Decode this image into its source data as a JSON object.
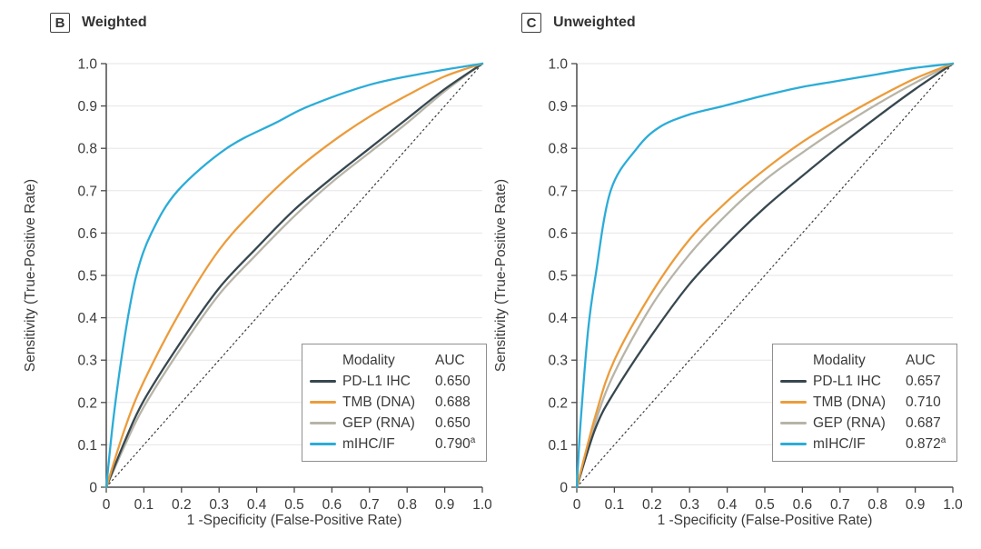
{
  "figure": {
    "background": "#ffffff",
    "text_color": "#3A3A3A",
    "axis_color": "#4A4A4A",
    "grid_color": "#E6E6E6",
    "diagonal_color": "#3A3A3A",
    "legend_border_color": "#8F8F8F"
  },
  "panels": [
    {
      "panel_letter": "B",
      "title": "Weighted",
      "xlabel": "1 -Specificity (False-Positive Rate)",
      "ylabel": "Sensitivity (True-Positive Rate)",
      "legend": {
        "header_modality": "Modality",
        "header_auc": "AUC",
        "rows": [
          {
            "label": "PD-L1 IHC",
            "auc": "0.650",
            "sup": ""
          },
          {
            "label": "TMB (DNA)",
            "auc": "0.688",
            "sup": ""
          },
          {
            "label": "GEP (RNA)",
            "auc": "0.650",
            "sup": ""
          },
          {
            "label": "mIHC/IF",
            "auc": "0.790",
            "sup": "a"
          }
        ]
      }
    },
    {
      "panel_letter": "C",
      "title": "Unweighted",
      "xlabel": "1 -Specificity (False-Positive Rate)",
      "ylabel": "Sensitivity (True-Positive Rate)",
      "legend": {
        "header_modality": "Modality",
        "header_auc": "AUC",
        "rows": [
          {
            "label": "PD-L1 IHC",
            "auc": "0.657",
            "sup": ""
          },
          {
            "label": "TMB (DNA)",
            "auc": "0.710",
            "sup": ""
          },
          {
            "label": "GEP (RNA)",
            "auc": "0.687",
            "sup": ""
          },
          {
            "label": "mIHC/IF",
            "auc": "0.872",
            "sup": "a"
          }
        ]
      }
    }
  ],
  "chart_data": [
    {
      "type": "line",
      "subtype": "roc-curve",
      "panel": "B",
      "title": "Weighted",
      "xlabel": "1 -Specificity (False-Positive Rate)",
      "ylabel": "Sensitivity (True-Positive Rate)",
      "xlim": [
        0,
        1
      ],
      "ylim": [
        0,
        1
      ],
      "x_ticks": [
        "0",
        "0.1",
        "0.2",
        "0.3",
        "0.4",
        "0.5",
        "0.6",
        "0.7",
        "0.8",
        "0.9",
        "1.0"
      ],
      "y_ticks": [
        "0",
        "0.1",
        "0.2",
        "0.3",
        "0.4",
        "0.5",
        "0.6",
        "0.7",
        "0.8",
        "0.9",
        "1.0"
      ],
      "grid": "horizontal",
      "legend_position": "lower-right",
      "reference_line": {
        "style": "dotted",
        "from": [
          0,
          0
        ],
        "to": [
          1,
          1
        ]
      },
      "series": [
        {
          "name": "PD-L1 IHC",
          "auc": 0.65,
          "color": "#37474F",
          "points": [
            [
              0,
              0
            ],
            [
              0.05,
              0.11
            ],
            [
              0.1,
              0.205
            ],
            [
              0.2,
              0.345
            ],
            [
              0.3,
              0.47
            ],
            [
              0.4,
              0.565
            ],
            [
              0.5,
              0.655
            ],
            [
              0.6,
              0.73
            ],
            [
              0.7,
              0.8
            ],
            [
              0.8,
              0.87
            ],
            [
              0.9,
              0.94
            ],
            [
              1,
              1
            ]
          ]
        },
        {
          "name": "TMB (DNA)",
          "auc": 0.688,
          "color": "#EB9C3C",
          "points": [
            [
              0,
              0
            ],
            [
              0.05,
              0.14
            ],
            [
              0.1,
              0.25
            ],
            [
              0.2,
              0.42
            ],
            [
              0.3,
              0.56
            ],
            [
              0.4,
              0.66
            ],
            [
              0.5,
              0.745
            ],
            [
              0.6,
              0.815
            ],
            [
              0.7,
              0.875
            ],
            [
              0.8,
              0.925
            ],
            [
              0.9,
              0.97
            ],
            [
              1,
              1
            ]
          ]
        },
        {
          "name": "GEP (RNA)",
          "auc": 0.65,
          "color": "#B7B4A8",
          "points": [
            [
              0,
              0
            ],
            [
              0.05,
              0.1
            ],
            [
              0.1,
              0.19
            ],
            [
              0.2,
              0.33
            ],
            [
              0.3,
              0.455
            ],
            [
              0.4,
              0.55
            ],
            [
              0.5,
              0.64
            ],
            [
              0.6,
              0.72
            ],
            [
              0.7,
              0.79
            ],
            [
              0.8,
              0.86
            ],
            [
              0.9,
              0.935
            ],
            [
              1,
              1
            ]
          ]
        },
        {
          "name": "mIHC/IF",
          "auc": 0.79,
          "color": "#2BACD8",
          "points": [
            [
              0,
              0
            ],
            [
              0.02,
              0.17
            ],
            [
              0.05,
              0.36
            ],
            [
              0.08,
              0.5
            ],
            [
              0.12,
              0.6
            ],
            [
              0.19,
              0.7
            ],
            [
              0.32,
              0.8
            ],
            [
              0.45,
              0.86
            ],
            [
              0.54,
              0.9
            ],
            [
              0.7,
              0.95
            ],
            [
              0.85,
              0.978
            ],
            [
              1,
              1
            ]
          ]
        }
      ]
    },
    {
      "type": "line",
      "subtype": "roc-curve",
      "panel": "C",
      "title": "Unweighted",
      "xlabel": "1 -Specificity (False-Positive Rate)",
      "ylabel": "Sensitivity (True-Positive Rate)",
      "xlim": [
        0,
        1
      ],
      "ylim": [
        0,
        1
      ],
      "x_ticks": [
        "0",
        "0.1",
        "0.2",
        "0.3",
        "0.4",
        "0.5",
        "0.6",
        "0.7",
        "0.8",
        "0.9",
        "1.0"
      ],
      "y_ticks": [
        "0",
        "0.1",
        "0.2",
        "0.3",
        "0.4",
        "0.5",
        "0.6",
        "0.7",
        "0.8",
        "0.9",
        "1.0"
      ],
      "grid": "horizontal",
      "legend_position": "lower-right",
      "reference_line": {
        "style": "dotted",
        "from": [
          0,
          0
        ],
        "to": [
          1,
          1
        ]
      },
      "series": [
        {
          "name": "PD-L1 IHC",
          "auc": 0.657,
          "color": "#37474F",
          "points": [
            [
              0,
              0
            ],
            [
              0.05,
              0.14
            ],
            [
              0.1,
              0.225
            ],
            [
              0.2,
              0.36
            ],
            [
              0.3,
              0.48
            ],
            [
              0.4,
              0.575
            ],
            [
              0.5,
              0.66
            ],
            [
              0.6,
              0.735
            ],
            [
              0.7,
              0.807
            ],
            [
              0.8,
              0.875
            ],
            [
              0.9,
              0.94
            ],
            [
              1,
              1
            ]
          ]
        },
        {
          "name": "TMB (DNA)",
          "auc": 0.71,
          "color": "#EB9C3C",
          "points": [
            [
              0,
              0
            ],
            [
              0.05,
              0.17
            ],
            [
              0.1,
              0.3
            ],
            [
              0.2,
              0.46
            ],
            [
              0.3,
              0.585
            ],
            [
              0.4,
              0.675
            ],
            [
              0.5,
              0.75
            ],
            [
              0.6,
              0.815
            ],
            [
              0.7,
              0.87
            ],
            [
              0.8,
              0.92
            ],
            [
              0.9,
              0.965
            ],
            [
              1,
              1
            ]
          ]
        },
        {
          "name": "GEP (RNA)",
          "auc": 0.687,
          "color": "#B7B4A8",
          "points": [
            [
              0,
              0
            ],
            [
              0.05,
              0.155
            ],
            [
              0.1,
              0.27
            ],
            [
              0.2,
              0.43
            ],
            [
              0.3,
              0.55
            ],
            [
              0.4,
              0.645
            ],
            [
              0.5,
              0.725
            ],
            [
              0.6,
              0.79
            ],
            [
              0.7,
              0.85
            ],
            [
              0.8,
              0.905
            ],
            [
              0.9,
              0.955
            ],
            [
              1,
              1
            ]
          ]
        },
        {
          "name": "mIHC/IF",
          "auc": 0.872,
          "color": "#2BACD8",
          "points": [
            [
              0,
              0
            ],
            [
              0.01,
              0.15
            ],
            [
              0.03,
              0.37
            ],
            [
              0.05,
              0.5
            ],
            [
              0.09,
              0.7
            ],
            [
              0.16,
              0.8
            ],
            [
              0.22,
              0.85
            ],
            [
              0.3,
              0.88
            ],
            [
              0.39,
              0.9
            ],
            [
              0.5,
              0.925
            ],
            [
              0.6,
              0.945
            ],
            [
              0.7,
              0.96
            ],
            [
              0.8,
              0.975
            ],
            [
              0.9,
              0.99
            ],
            [
              1,
              1
            ]
          ]
        }
      ]
    }
  ]
}
